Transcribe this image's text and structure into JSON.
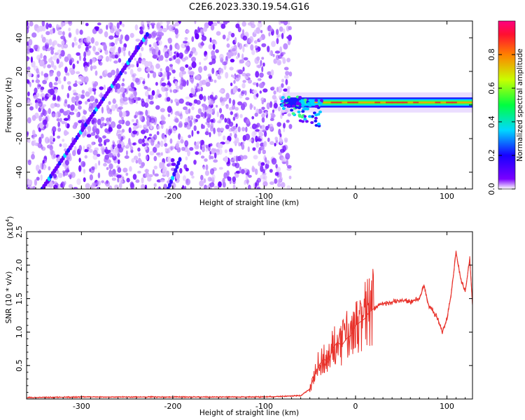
{
  "title": "C2E6.2023.330.19.54.G16",
  "colors": {
    "spectrogram_noise": "#8a2be2",
    "ridge_red": "#ff2020",
    "snr_line": "#e8322b",
    "frame": "#000000"
  },
  "colorbar": {
    "label": "Normalized spectral amplitude",
    "ticks": [
      "0.0",
      "0.2",
      "0.4",
      "0.6",
      "0.8"
    ],
    "range": [
      0,
      1
    ],
    "colormap": [
      "#ffffff",
      "#7a00ff",
      "#0000ff",
      "#00e5ff",
      "#00ff40",
      "#c8ff00",
      "#ff8000",
      "#ff1030",
      "#ff0080"
    ]
  },
  "chart_data": [
    {
      "type": "heatmap",
      "title": "C2E6.2023.330.19.54.G16",
      "xlabel": "Height of straight line (km)",
      "ylabel": "Frequency (Hz)",
      "xlim": [
        -360,
        128
      ],
      "ylim": [
        -50,
        50
      ],
      "xticks": [
        -300,
        -200,
        -100,
        0,
        100
      ],
      "yticks": [
        -40,
        -20,
        0,
        20,
        40
      ],
      "xtick_labels": [
        "-300",
        "-200",
        "-100",
        "0",
        "100"
      ],
      "ytick_labels": [
        "-40",
        "-20",
        "0",
        "20",
        "40"
      ],
      "noise_region_x": [
        -360,
        -75
      ],
      "ridge_frequency_hz": 1.5,
      "diagonal_trace": {
        "x_start": -343,
        "y_start": -50,
        "x_end": -228,
        "y_end": 42
      }
    },
    {
      "type": "line",
      "xlabel": "Height of straight line (km)",
      "ylabel": "SNR (10 * v/v)",
      "y_multiplier_label": "(x10",
      "y_multiplier_exp": "4",
      "xlim": [
        -360,
        128
      ],
      "ylim": [
        0,
        2.5
      ],
      "xticks": [
        -300,
        -200,
        -100,
        0,
        100
      ],
      "yticks": [
        0.5,
        1.0,
        1.5,
        2.0,
        2.5
      ],
      "xtick_labels": [
        "-300",
        "-200",
        "-100",
        "0",
        "100"
      ],
      "ytick_labels": [
        "0.5",
        "1.0",
        "1.5",
        "2.0",
        "2.5"
      ],
      "series": [
        {
          "x": [
            -360,
            -300,
            -200,
            -100,
            -60,
            -50,
            -45,
            -40,
            -35,
            -30,
            -25,
            -20,
            -15,
            -10,
            -5,
            0,
            5,
            10,
            15,
            20,
            25,
            30,
            40,
            50,
            60,
            70,
            75,
            80,
            85,
            90,
            95,
            100,
            105,
            110,
            115,
            120,
            125,
            128
          ],
          "y": [
            0.02,
            0.03,
            0.03,
            0.03,
            0.05,
            0.15,
            0.35,
            0.5,
            0.6,
            0.55,
            0.75,
            0.85,
            0.8,
            0.9,
            0.95,
            1.1,
            1.15,
            1.2,
            1.3,
            1.35,
            1.4,
            1.42,
            1.45,
            1.48,
            1.45,
            1.5,
            1.7,
            1.4,
            1.3,
            1.2,
            1.0,
            1.2,
            1.6,
            2.2,
            1.8,
            1.6,
            2.1,
            1.4
          ]
        }
      ]
    }
  ]
}
